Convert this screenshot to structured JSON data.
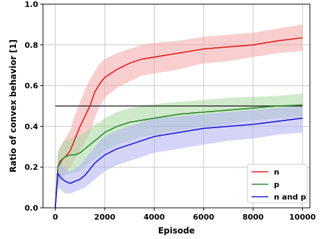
{
  "chart_data": {
    "type": "line",
    "title": "",
    "xlabel": "Episode",
    "ylabel": "Ratio of convex behavior [1]",
    "xlim": [
      -500,
      10300
    ],
    "ylim": [
      0.0,
      1.0
    ],
    "x_ticks": [
      0,
      2000,
      4000,
      6000,
      8000,
      10000
    ],
    "x_tick_labels": [
      "0",
      "2000",
      "4000",
      "6000",
      "8000",
      "10000"
    ],
    "y_ticks": [
      0.0,
      0.2,
      0.4,
      0.6,
      0.8,
      1.0
    ],
    "y_tick_labels": [
      "0.0",
      "0.2",
      "0.4",
      "0.6",
      "0.8",
      "1.0"
    ],
    "grid": true,
    "legend_position": "lower-right",
    "reference_line": {
      "y": 0.5,
      "x_range": [
        0,
        10000
      ],
      "color": "#333333"
    },
    "series": [
      {
        "name": "n",
        "color": "#e31a1c",
        "band_color": "#f4a6a6",
        "x": [
          0,
          100,
          200,
          300,
          400,
          600,
          800,
          1000,
          1200,
          1400,
          1600,
          1800,
          2000,
          2500,
          3000,
          3500,
          4000,
          5000,
          6000,
          7000,
          8000,
          9000,
          10000
        ],
        "values": [
          0.0,
          0.2,
          0.23,
          0.24,
          0.25,
          0.28,
          0.34,
          0.4,
          0.45,
          0.5,
          0.57,
          0.61,
          0.64,
          0.68,
          0.71,
          0.73,
          0.74,
          0.76,
          0.78,
          0.79,
          0.8,
          0.82,
          0.835
        ],
        "upper": [
          0.0,
          0.26,
          0.3,
          0.32,
          0.34,
          0.38,
          0.46,
          0.52,
          0.58,
          0.63,
          0.67,
          0.71,
          0.73,
          0.76,
          0.78,
          0.8,
          0.81,
          0.82,
          0.84,
          0.85,
          0.86,
          0.88,
          0.9
        ],
        "lower": [
          0.0,
          0.1,
          0.14,
          0.16,
          0.17,
          0.2,
          0.24,
          0.28,
          0.32,
          0.37,
          0.44,
          0.5,
          0.54,
          0.59,
          0.62,
          0.65,
          0.66,
          0.68,
          0.71,
          0.72,
          0.74,
          0.76,
          0.77
        ]
      },
      {
        "name": "p",
        "color": "#2a8a2a",
        "band_color": "#a8d8a0",
        "x": [
          0,
          100,
          200,
          300,
          400,
          600,
          800,
          1000,
          1200,
          1400,
          1600,
          1800,
          2000,
          2500,
          3000,
          3500,
          4000,
          5000,
          6000,
          7000,
          8000,
          9000,
          10000
        ],
        "values": [
          0.0,
          0.2,
          0.22,
          0.24,
          0.25,
          0.26,
          0.26,
          0.27,
          0.29,
          0.31,
          0.33,
          0.35,
          0.37,
          0.4,
          0.42,
          0.43,
          0.44,
          0.46,
          0.47,
          0.48,
          0.49,
          0.5,
          0.505
        ],
        "upper": [
          0.0,
          0.28,
          0.3,
          0.32,
          0.33,
          0.34,
          0.35,
          0.36,
          0.37,
          0.39,
          0.41,
          0.42,
          0.44,
          0.47,
          0.49,
          0.5,
          0.51,
          0.52,
          0.53,
          0.54,
          0.545,
          0.55,
          0.56
        ],
        "lower": [
          0.0,
          0.13,
          0.14,
          0.15,
          0.16,
          0.17,
          0.17,
          0.18,
          0.2,
          0.22,
          0.24,
          0.26,
          0.28,
          0.31,
          0.33,
          0.35,
          0.36,
          0.38,
          0.4,
          0.41,
          0.43,
          0.44,
          0.45
        ]
      },
      {
        "name": "n and p",
        "color": "#1a1ad6",
        "band_color": "#b0b0f4",
        "x": [
          0,
          100,
          200,
          300,
          400,
          600,
          800,
          1000,
          1200,
          1400,
          1600,
          1800,
          2000,
          2500,
          3000,
          3500,
          4000,
          5000,
          6000,
          7000,
          8000,
          9000,
          10000
        ],
        "values": [
          0.0,
          0.17,
          0.15,
          0.14,
          0.13,
          0.12,
          0.13,
          0.14,
          0.16,
          0.19,
          0.22,
          0.24,
          0.26,
          0.29,
          0.31,
          0.33,
          0.35,
          0.37,
          0.39,
          0.4,
          0.41,
          0.425,
          0.44
        ],
        "upper": [
          0.0,
          0.22,
          0.21,
          0.2,
          0.19,
          0.18,
          0.19,
          0.21,
          0.24,
          0.27,
          0.3,
          0.33,
          0.35,
          0.38,
          0.4,
          0.42,
          0.44,
          0.45,
          0.46,
          0.47,
          0.48,
          0.49,
          0.5
        ],
        "lower": [
          0.0,
          0.1,
          0.09,
          0.08,
          0.07,
          0.07,
          0.08,
          0.09,
          0.1,
          0.12,
          0.14,
          0.16,
          0.18,
          0.21,
          0.23,
          0.25,
          0.27,
          0.29,
          0.31,
          0.33,
          0.34,
          0.36,
          0.37
        ]
      }
    ]
  }
}
